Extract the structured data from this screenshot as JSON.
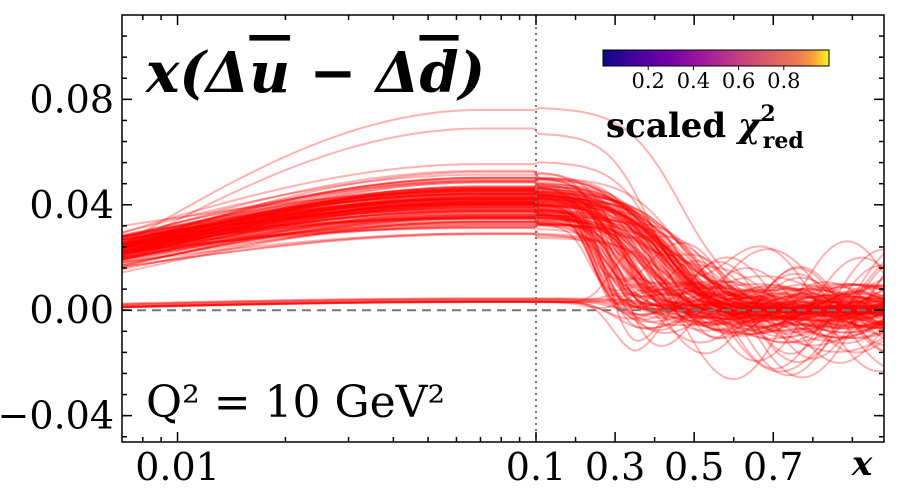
{
  "chart_data": {
    "type": "line",
    "title": "x(Δū − Δd̄)",
    "annotation": "Q² = 10 GeV²",
    "xlabel": "x",
    "ylabel": "",
    "x_axis": {
      "scale": "log below 0.1, linear above 0.1",
      "break_at": 0.1,
      "range": [
        0.007,
        0.98
      ],
      "tick_values": [
        0.01,
        0.1,
        0.3,
        0.5,
        0.7
      ],
      "tick_labels": [
        "0.01",
        "0.1",
        "0.3",
        "0.5",
        "0.7"
      ]
    },
    "y_axis": {
      "range": [
        -0.05,
        0.112
      ],
      "tick_values": [
        -0.04,
        0.0,
        0.04,
        0.08
      ],
      "tick_labels": [
        "−0.04",
        "0.00",
        "0.04",
        "0.08"
      ]
    },
    "reference_lines": [
      {
        "orientation": "horizontal",
        "value": 0.0,
        "style": "dashed",
        "color": "#777777"
      },
      {
        "orientation": "vertical",
        "value": 0.1,
        "style": "dotted",
        "color": "#777777"
      }
    ],
    "colorbar": {
      "label": "scaled χ²_red",
      "label_main": "scaled ",
      "label_symbol": "χ",
      "label_sup": "2",
      "label_sub": "red",
      "range": [
        0.0,
        1.0
      ],
      "tick_values": [
        0.2,
        0.4,
        0.6,
        0.8
      ],
      "tick_labels": [
        "0.2",
        "0.4",
        "0.6",
        "0.8"
      ],
      "colormap": "plasma"
    },
    "band": {
      "n_curves": 150,
      "color": "#ff0000",
      "opacity": 0.3,
      "low_x_start": {
        "min": 0.003,
        "max": 0.034,
        "mean": 0.023
      },
      "peak_x": 0.07,
      "peak_value": {
        "min": 0.003,
        "max": 0.086,
        "mean": 0.04
      },
      "zero_crossing_x": {
        "min": 0.25,
        "max": 0.55
      },
      "high_x_tail": {
        "min": -0.05,
        "max": 0.078
      },
      "median_curve": {
        "x": [
          0.007,
          0.01,
          0.02,
          0.04,
          0.07,
          0.1,
          0.2,
          0.3,
          0.4,
          0.5,
          0.6,
          0.7,
          0.8,
          0.9,
          0.98
        ],
        "y": [
          0.024,
          0.027,
          0.033,
          0.038,
          0.04,
          0.039,
          0.026,
          0.014,
          0.005,
          0.001,
          0.0,
          0.0,
          -0.002,
          -0.002,
          0.0
        ]
      }
    }
  }
}
